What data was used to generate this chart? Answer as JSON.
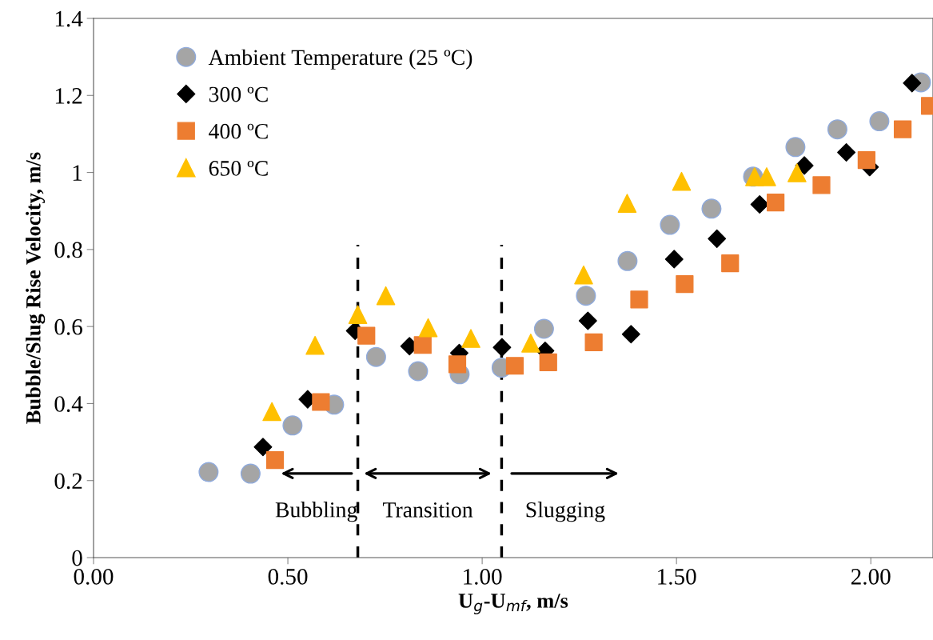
{
  "chart_data": {
    "type": "scatter",
    "xlabel": "U$_{g}$-U$_{mf}$, m/s",
    "ylabel": "Bubble/Slug Rise Velocity, m/s",
    "xlim": [
      0,
      2.16
    ],
    "ylim": [
      0,
      1.4
    ],
    "xticks": [
      {
        "value": 0,
        "label": "0.00"
      },
      {
        "value": 0.5,
        "label": "0.50"
      },
      {
        "value": 1,
        "label": "1.00"
      },
      {
        "value": 1.5,
        "label": "1.50"
      },
      {
        "value": 2,
        "label": "2.00"
      }
    ],
    "yticks": [
      0,
      0.2,
      0.4,
      0.6,
      0.8,
      1,
      1.2,
      1.4
    ],
    "grid": false,
    "legend": "top left",
    "series": [
      {
        "name": "Ambient Temperature (25 ºC)",
        "color": "#a5a5a5",
        "marker": "circle",
        "x": [
          0.296,
          0.404,
          0.512,
          0.619,
          0.727,
          0.835,
          0.942,
          1.05,
          1.159,
          1.267,
          1.374,
          1.483,
          1.59,
          1.697,
          1.806,
          1.914,
          2.022,
          2.129
        ],
        "values": [
          0.222,
          0.218,
          0.343,
          0.397,
          0.521,
          0.484,
          0.476,
          0.493,
          0.594,
          0.68,
          0.77,
          0.864,
          0.906,
          0.989,
          1.066,
          1.112,
          1.133,
          1.234
        ]
      },
      {
        "name": "300 ºC",
        "color": "#000000",
        "marker": "diamond",
        "x": [
          0.436,
          0.551,
          0.673,
          0.813,
          0.941,
          1.051,
          1.162,
          1.272,
          1.383,
          1.494,
          1.604,
          1.714,
          1.829,
          1.937,
          1.997,
          2.106
        ],
        "values": [
          0.287,
          0.411,
          0.589,
          0.549,
          0.531,
          0.546,
          0.537,
          0.615,
          0.58,
          0.775,
          0.828,
          0.917,
          1.018,
          1.052,
          1.014,
          1.232
        ]
      },
      {
        "name": "400 ºC",
        "color": "#ed7d31",
        "marker": "square",
        "x": [
          0.467,
          0.585,
          0.702,
          0.847,
          0.936,
          1.084,
          1.17,
          1.287,
          1.404,
          1.521,
          1.638,
          1.755,
          1.873,
          1.989,
          2.082,
          2.152
        ],
        "values": [
          0.253,
          0.404,
          0.576,
          0.552,
          0.502,
          0.498,
          0.507,
          0.559,
          0.67,
          0.71,
          0.764,
          0.922,
          0.967,
          1.032,
          1.112,
          1.173
        ]
      },
      {
        "name": "650 ºC",
        "color": "#ffc000",
        "marker": "triangle",
        "x": [
          0.459,
          0.57,
          0.68,
          0.752,
          0.861,
          0.971,
          1.125,
          1.261,
          1.373,
          1.513,
          1.701,
          1.732,
          1.81
        ],
        "values": [
          0.379,
          0.551,
          0.631,
          0.68,
          0.597,
          0.569,
          0.557,
          0.734,
          0.92,
          0.977,
          0.989,
          0.989,
          0.999
        ]
      }
    ],
    "ref_lines": [
      {
        "axis": "x",
        "value": 0.68,
        "color": "#000000",
        "line_style": "dashed"
      },
      {
        "axis": "x",
        "value": 1.05,
        "color": "#000000",
        "line_style": "dashed"
      }
    ],
    "annotations": [
      "Bubbling",
      "Transition",
      "Slugging"
    ]
  }
}
